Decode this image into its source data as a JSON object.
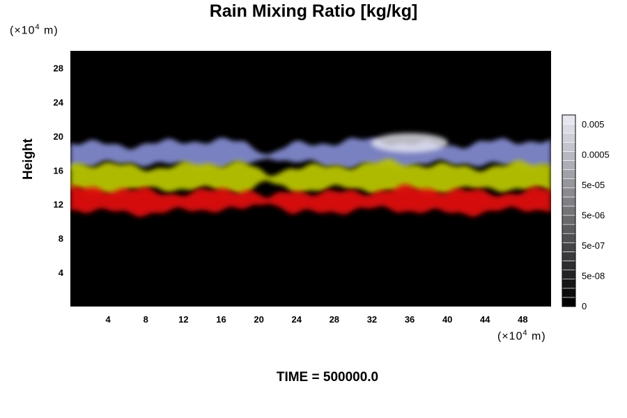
{
  "chart_data": {
    "type": "heatmap",
    "title": "Rain Mixing Ratio [kg/kg]",
    "ylabel": "Height",
    "y_unit": {
      "prefix": "(×10",
      "exp": "4",
      "suffix": " m)"
    },
    "x_unit": {
      "prefix": "(×10",
      "exp": "4",
      "suffix": " m)"
    },
    "xlim": [
      0,
      51
    ],
    "ylim": [
      0,
      30
    ],
    "x_ticks": [
      4,
      8,
      12,
      16,
      20,
      24,
      28,
      32,
      36,
      40,
      44,
      48
    ],
    "y_ticks": [
      4,
      8,
      12,
      16,
      20,
      24,
      28
    ],
    "colorbar": {
      "labels": [
        "0",
        "5e-08",
        "5e-07",
        "5e-06",
        "5e-05",
        "0.0005",
        "0.005"
      ]
    },
    "layers": [
      {
        "name": "red",
        "color": "#e01010",
        "y_top": 13.6,
        "y_bottom": 11.2
      },
      {
        "name": "yellow",
        "color": "#b8c400",
        "y_top": 16.6,
        "y_bottom": 13.6
      },
      {
        "name": "blue",
        "color": "#8088cc",
        "y_top": 19.2,
        "y_bottom": 16.6
      }
    ]
  },
  "footer": "TIME = 500000.0"
}
